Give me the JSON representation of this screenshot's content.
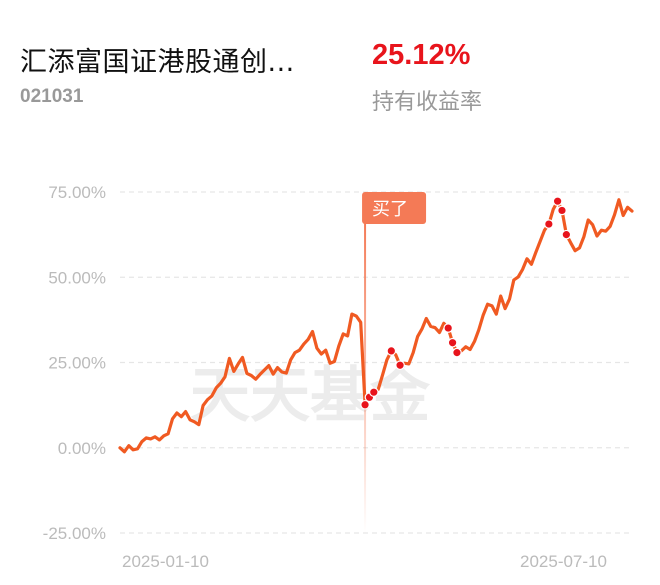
{
  "header": {
    "fund_name": "汇添富国证港股通创...",
    "fund_code": "021031",
    "return_value": "25.12%",
    "return_label": "持有收益率"
  },
  "colors": {
    "line": "#f05a22",
    "return_value": "#e8141c",
    "buy_marker": "#f47a56",
    "grid": "#e6e6e6",
    "tick_text": "#bbbbbb"
  },
  "chart": {
    "watermark": "天天基金",
    "buy_label": "买了",
    "y_ticks": [
      "75.00%",
      "50.00%",
      "25.00%",
      "0.00%",
      "-25.00%"
    ],
    "x_ticks": [
      "2025-01-10",
      "2025-07-10"
    ]
  },
  "chart_data": {
    "type": "line",
    "ylim": [
      -25,
      75
    ],
    "y_ticks": [
      75,
      50,
      25,
      0,
      -25
    ],
    "x_tick_labels": [
      "2025-01-10",
      "2025-07-10"
    ],
    "grid": "horizontal dashed",
    "values": [
      0,
      -1.2,
      0.6,
      -0.6,
      -0.3,
      1.8,
      2.9,
      2.6,
      3.2,
      2.3,
      3.5,
      4.1,
      8.5,
      10.2,
      9.1,
      10.6,
      8.2,
      7.6,
      6.8,
      12.4,
      14.1,
      15.2,
      17.6,
      18.9,
      20.8,
      26.2,
      22.4,
      24.6,
      26.5,
      21.8,
      21.2,
      20.1,
      21.5,
      22.8,
      24.1,
      21.6,
      23.5,
      22.2,
      21.9,
      25.8,
      27.9,
      28.6,
      30.4,
      31.8,
      34.1,
      29.2,
      27.5,
      28.6,
      24.8,
      25.3,
      29.8,
      33.4,
      32.8,
      39.2,
      38.6,
      36.8,
      12.6,
      14.8,
      16.3,
      17.1,
      21.4,
      25.8,
      28.4,
      27.3,
      24.2,
      24.8,
      24.6,
      27.9,
      32.6,
      34.8,
      37.9,
      35.6,
      35.2,
      33.8,
      36.5,
      35.1,
      30.8,
      27.9,
      28.4,
      29.6,
      28.8,
      31.2,
      34.6,
      38.9,
      42.1,
      41.6,
      39.2,
      44.5,
      40.8,
      43.6,
      49.2,
      50.1,
      52.3,
      55.4,
      53.8,
      57.2,
      60.5,
      63.8,
      65.6,
      69.9,
      72.3,
      69.6,
      62.5,
      60.1,
      57.8,
      58.6,
      61.9,
      66.8,
      65.4,
      62.1,
      63.8,
      63.5,
      64.9,
      68.3,
      72.7,
      68.1,
      70.5,
      69.4
    ],
    "buy_index": 56,
    "marked_points": [
      56,
      57,
      58,
      62,
      64,
      75,
      76,
      77,
      98,
      100,
      101,
      102
    ]
  }
}
